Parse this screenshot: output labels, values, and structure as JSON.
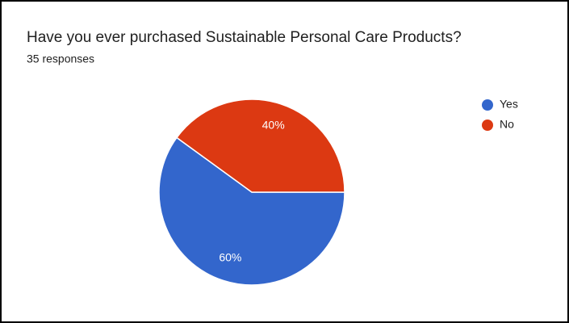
{
  "chart_data": {
    "type": "pie",
    "title": "Have you ever purchased Sustainable Personal Care Products?",
    "subtitle": "35 responses",
    "categories": [
      "Yes",
      "No"
    ],
    "values": [
      60,
      40
    ],
    "value_labels": [
      "60%",
      "40%"
    ],
    "colors": [
      "#3366cc",
      "#dc3912"
    ],
    "legend": "right"
  }
}
